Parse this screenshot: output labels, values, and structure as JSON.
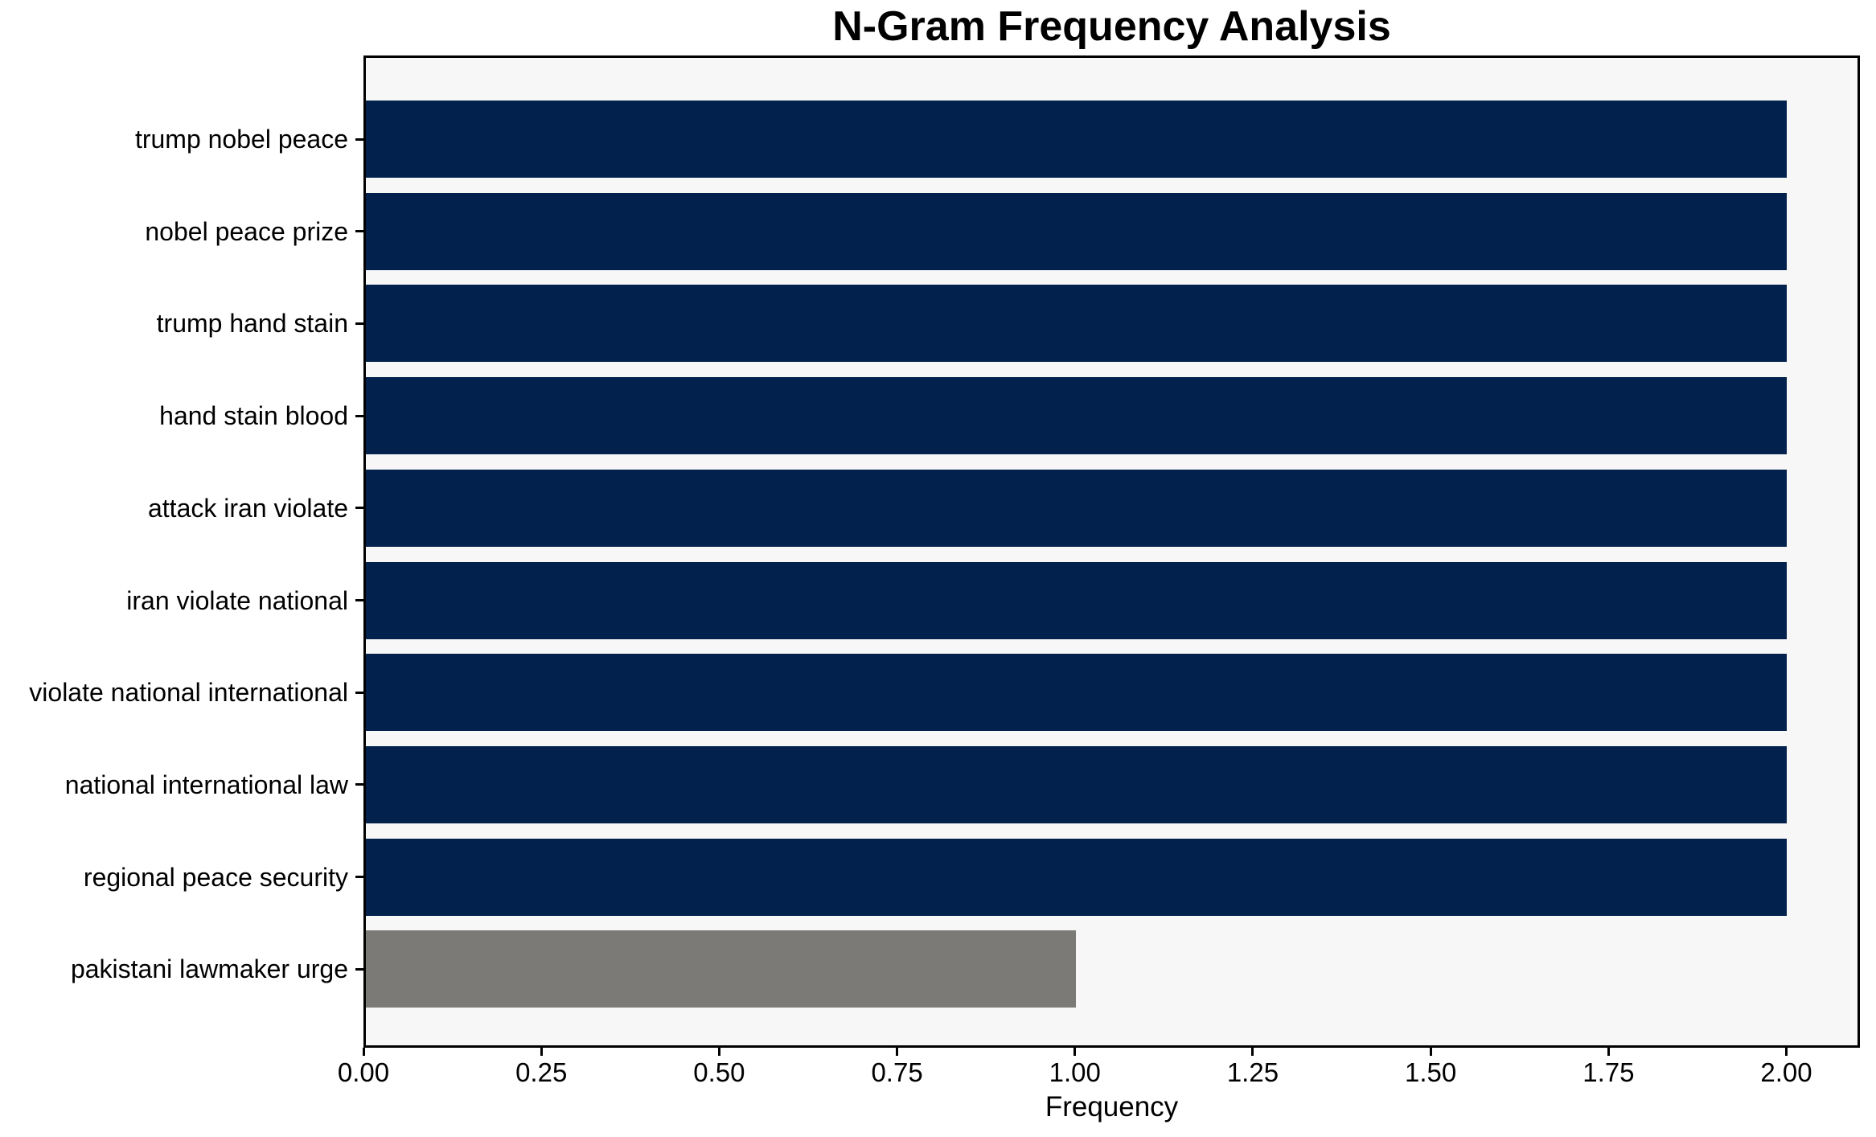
{
  "title": "N-Gram Frequency Analysis",
  "chart_data": {
    "type": "bar",
    "orientation": "horizontal",
    "title": "N-Gram Frequency Analysis",
    "xlabel": "Frequency",
    "ylabel": "",
    "categories": [
      "trump nobel peace",
      "nobel peace prize",
      "trump hand stain",
      "hand stain blood",
      "attack iran violate",
      "iran violate national",
      "violate national international",
      "national international law",
      "regional peace security",
      "pakistani lawmaker urge"
    ],
    "values": [
      2,
      2,
      2,
      2,
      2,
      2,
      2,
      2,
      2,
      1
    ],
    "bar_colors": [
      "#02224d",
      "#02224d",
      "#02224d",
      "#02224d",
      "#02224d",
      "#02224d",
      "#02224d",
      "#02224d",
      "#02224d",
      "#7b7a77"
    ],
    "xlim": [
      0,
      2.1
    ],
    "x_ticks": [
      {
        "value": 0.0,
        "label": "0.00"
      },
      {
        "value": 0.25,
        "label": "0.25"
      },
      {
        "value": 0.5,
        "label": "0.50"
      },
      {
        "value": 0.75,
        "label": "0.75"
      },
      {
        "value": 1.0,
        "label": "1.00"
      },
      {
        "value": 1.25,
        "label": "1.25"
      },
      {
        "value": 1.5,
        "label": "1.50"
      },
      {
        "value": 1.75,
        "label": "1.75"
      },
      {
        "value": 2.0,
        "label": "2.00"
      }
    ],
    "grid": false,
    "legend": false,
    "plot_background": "#f7f7f7",
    "figure_background": "#ffffff",
    "default_bar_color": "#02224d",
    "highlight_bar_color": "#7b7a77"
  }
}
